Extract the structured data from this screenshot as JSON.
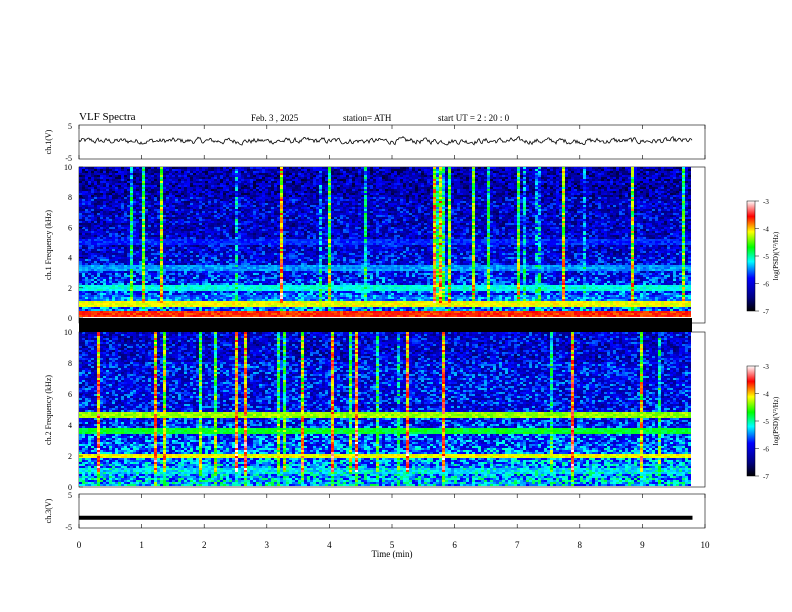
{
  "header": {
    "title": "VLF Spectra",
    "date": "Feb. 3 , 2025",
    "station": "station= ATH",
    "start": "start UT = 2 : 20 : 0"
  },
  "chart_data": [
    {
      "type": "line",
      "ylabel": "ch.1(V)",
      "ylim": [
        -5,
        5
      ],
      "yticks": [
        "5",
        "-5"
      ],
      "xlim": [
        0,
        10
      ],
      "series_color": "#000000",
      "description_values": "noisy waveform centered slightly above 0 V, amplitude about ±1 V, ending at 9.8 min"
    },
    {
      "type": "heatmap",
      "ylabel": "ch.1 Frequency (kHz)",
      "ylim": [
        0,
        10
      ],
      "yticks": [
        "0",
        "2",
        "4",
        "6",
        "8",
        "10"
      ],
      "xlim": [
        0,
        10
      ],
      "data_end_min": 9.8,
      "colorbar": {
        "label": "log(PSD)(V²/Hz)",
        "range": [
          -7,
          -3
        ],
        "ticks": [
          "-3",
          "-4",
          "-5",
          "-6",
          "-7"
        ]
      },
      "bands_khz": [
        {
          "f": 0.3,
          "level": -3.5
        },
        {
          "f": 0.9,
          "level": -4.0
        },
        {
          "f": 1.3,
          "level": -5.5
        },
        {
          "f": 2.0,
          "level": -5.0
        },
        {
          "f": 3.3,
          "level": -5.3
        },
        {
          "f": 5.0,
          "level": -5.6
        }
      ]
    },
    {
      "type": "heatmap",
      "ylabel": "ch.2 Frequency (kHz)",
      "ylim": [
        0,
        10
      ],
      "yticks": [
        "0",
        "2",
        "4",
        "6",
        "8",
        "10"
      ],
      "xlim": [
        0,
        10
      ],
      "data_end_min": 9.8,
      "colorbar": {
        "label": "log(PSD)(V²/Hz)",
        "range": [
          -7,
          -3
        ],
        "ticks": [
          "-3",
          "-4",
          "-5",
          "-6",
          "-7"
        ]
      },
      "bands_khz": [
        {
          "f": 2.0,
          "level": -4.0
        },
        {
          "f": 3.6,
          "level": -4.6
        },
        {
          "f": 4.6,
          "level": -4.2
        },
        {
          "f": 1.0,
          "level": -5.2
        }
      ]
    },
    {
      "type": "line",
      "ylabel": "ch.3(V)",
      "ylim": [
        -5,
        5
      ],
      "yticks": [
        "5",
        "-5"
      ],
      "xlim": [
        0,
        10
      ],
      "xticks": [
        "0",
        "1",
        "2",
        "3",
        "4",
        "5",
        "6",
        "7",
        "8",
        "9",
        "10"
      ],
      "xlabel": "Time (min)",
      "constant_value": -2,
      "series_color": "#000000"
    }
  ],
  "colors": {
    "cmap": [
      "#000000",
      "#00007f",
      "#0000ff",
      "#00ffff",
      "#00ff00",
      "#ffff00",
      "#ff0000",
      "#ffffff"
    ]
  }
}
